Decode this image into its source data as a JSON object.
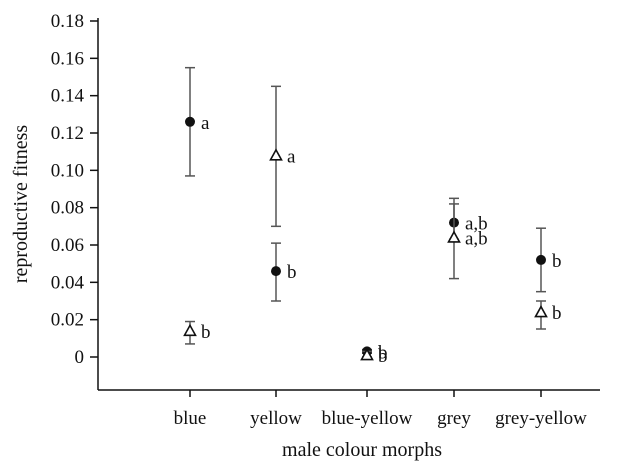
{
  "chart_data": {
    "type": "scatter",
    "title": "",
    "xlabel": "male colour morphs",
    "ylabel": "reproductive fitness",
    "ylim": [
      -0.018,
      0.18
    ],
    "yticks": [
      "0",
      "0.02",
      "0.04",
      "0.06",
      "0.08",
      "0.10",
      "0.12",
      "0.14",
      "0.16",
      "0.18"
    ],
    "ytick_values": [
      0,
      0.02,
      0.04,
      0.06,
      0.08,
      0.1,
      0.12,
      0.14,
      0.16,
      0.18
    ],
    "categories": [
      "blue",
      "yellow",
      "blue-yellow",
      "grey",
      "grey-yellow"
    ],
    "grid": false,
    "series": [
      {
        "marker": "filled-circle",
        "color": "#111111",
        "points": [
          {
            "category": "blue",
            "y": 0.126,
            "low": 0.097,
            "high": 0.155,
            "label": "a"
          },
          {
            "category": "yellow",
            "y": 0.046,
            "low": 0.03,
            "high": 0.061,
            "label": "b"
          },
          {
            "category": "blue-yellow",
            "y": 0.003,
            "low": 0.002,
            "high": 0.004,
            "label": "b"
          },
          {
            "category": "grey",
            "y": 0.072,
            "low": 0.063,
            "high": 0.085,
            "label": "a,b"
          },
          {
            "category": "grey-yellow",
            "y": 0.052,
            "low": 0.035,
            "high": 0.069,
            "label": "b"
          }
        ]
      },
      {
        "marker": "open-triangle",
        "color": "#111111",
        "points": [
          {
            "category": "blue",
            "y": 0.014,
            "low": 0.007,
            "high": 0.019,
            "label": "b"
          },
          {
            "category": "yellow",
            "y": 0.108,
            "low": 0.07,
            "high": 0.145,
            "label": "a"
          },
          {
            "category": "blue-yellow",
            "y": 0.001,
            "low": 0.0,
            "high": 0.003,
            "label": "b"
          },
          {
            "category": "grey",
            "y": 0.064,
            "low": 0.042,
            "high": 0.082,
            "label": "a,b"
          },
          {
            "category": "grey-yellow",
            "y": 0.024,
            "low": 0.015,
            "high": 0.03,
            "label": "b"
          }
        ]
      }
    ]
  }
}
